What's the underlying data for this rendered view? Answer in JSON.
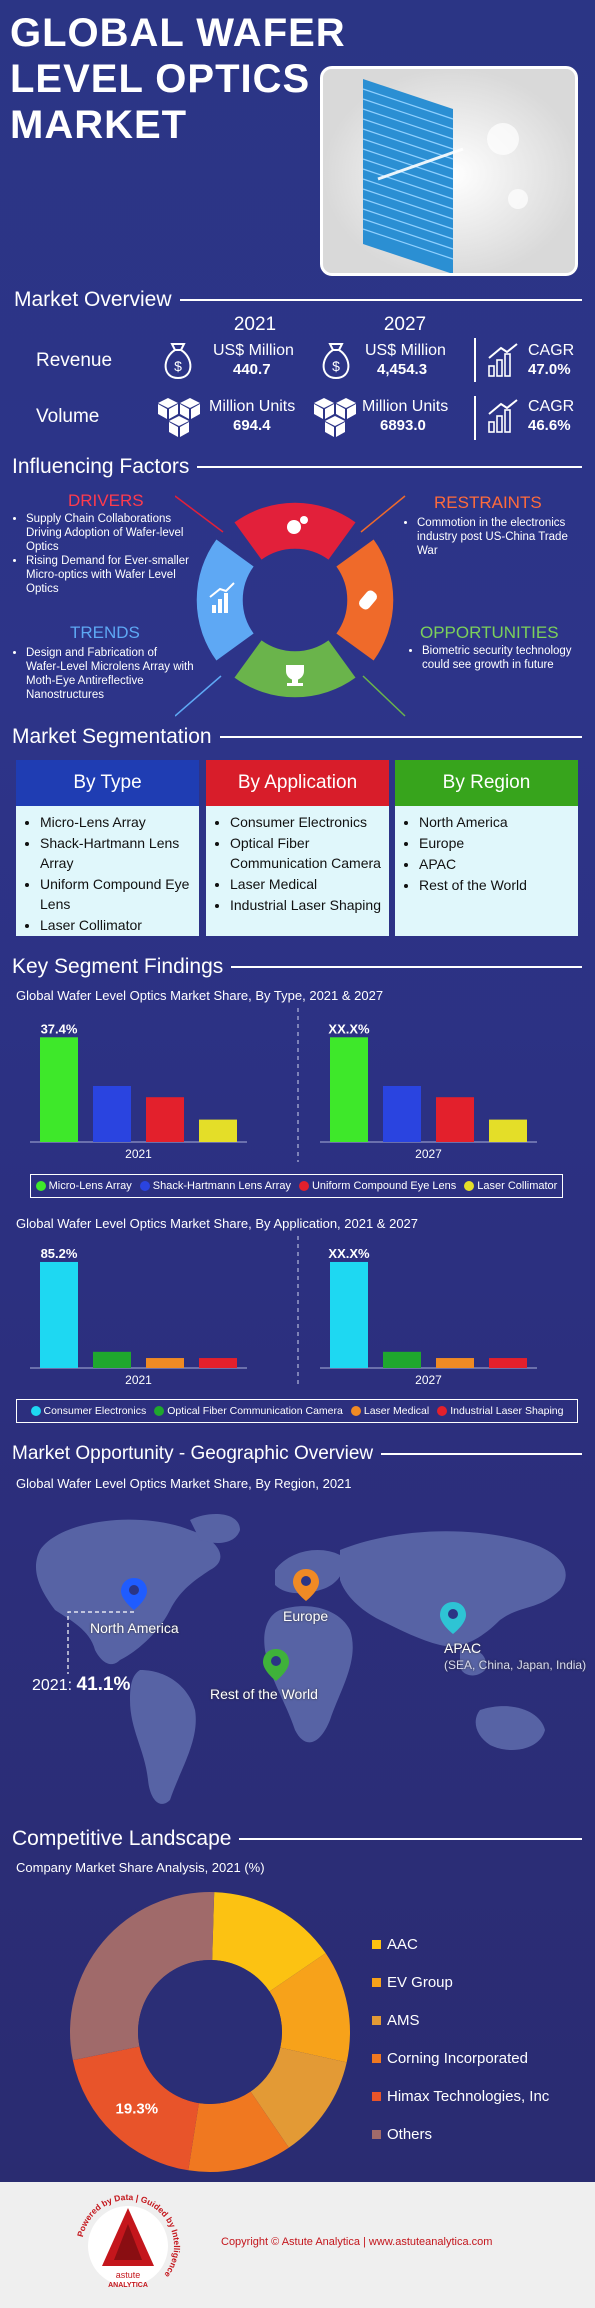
{
  "title": {
    "line1": "GLOBAL WAFER",
    "line2": "LEVEL OPTICS",
    "line3": "MARKET"
  },
  "overview": {
    "heading": "Market Overview",
    "year_a": "2021",
    "year_b": "2027",
    "revenue": {
      "label": "Revenue",
      "unit_a": "US$ Million",
      "value_a": "440.7",
      "unit_b": "US$ Million",
      "value_b": "4,454.3",
      "cagr_label": "CAGR",
      "cagr": "47.0%"
    },
    "volume": {
      "label": "Volume",
      "unit_a": "Million Units",
      "value_a": "694.4",
      "unit_b": "Million Units",
      "value_b": "6893.0",
      "cagr_label": "CAGR",
      "cagr": "46.6%"
    }
  },
  "factors": {
    "heading": "Influencing Factors",
    "drivers": {
      "title": "DRIVERS",
      "items": [
        "Supply Chain Collaborations Driving Adoption of Wafer-level Optics",
        "Rising Demand for Ever-smaller Micro-optics with Wafer Level Optics"
      ]
    },
    "restraints": {
      "title": "RESTRAINTS",
      "items": [
        "Commotion in the electronics industry post US-China Trade War"
      ]
    },
    "trends": {
      "title": "TRENDS",
      "items": [
        "Design and Fabrication of Wafer-Level Microlens Array with Moth-Eye Antireflective Nanostructures"
      ]
    },
    "opportunities": {
      "title": "OPPORTUNITIES",
      "items": [
        "Biometric security technology could see growth in future"
      ]
    }
  },
  "segmentation": {
    "heading": "Market Segmentation",
    "by_type": {
      "title": "By Type",
      "items": [
        "Micro-Lens Array",
        "Shack-Hartmann Lens Array",
        "Uniform Compound Eye Lens",
        "Laser Collimator"
      ]
    },
    "by_application": {
      "title": "By Application",
      "items": [
        "Consumer Electronics",
        "Optical Fiber Communication Camera",
        "Laser Medical",
        "Industrial Laser Shaping"
      ]
    },
    "by_region": {
      "title": "By Region",
      "items": [
        "North America",
        "Europe",
        "APAC",
        "Rest of the World"
      ]
    }
  },
  "findings": {
    "heading": "Key Segment Findings",
    "chart1_title": "Global Wafer Level Optics Market Share, By Type, 2021 & 2027",
    "chart2_title": "Global Wafer Level Optics Market Share, By Application, 2021 & 2027"
  },
  "chart_data": [
    {
      "type": "bar",
      "title": "Global Wafer Level Optics Market Share, By Type, 2021 & 2027",
      "groups": [
        "2021",
        "2027"
      ],
      "series": [
        {
          "name": "Micro-Lens Array",
          "color": "#3ee82a",
          "values": [
            37.4,
            37.4
          ]
        },
        {
          "name": "Shack-Hartmann Lens Array",
          "color": "#2a44e0",
          "values": [
            20,
            20
          ]
        },
        {
          "name": "Uniform Compound Eye Lens",
          "color": "#e3202c",
          "values": [
            16,
            16
          ]
        },
        {
          "name": "Laser Collimator",
          "color": "#e4de28",
          "values": [
            8,
            8
          ]
        }
      ],
      "data_labels": [
        "37.4%",
        "XX.X%"
      ],
      "ylim": [
        0,
        40
      ]
    },
    {
      "type": "bar",
      "title": "Global Wafer Level Optics Market Share, By Application, 2021 & 2027",
      "groups": [
        "2021",
        "2027"
      ],
      "series": [
        {
          "name": "Consumer Electronics",
          "color": "#1ed8f2",
          "values": [
            85.2,
            85.2
          ]
        },
        {
          "name": "Optical Fiber Communication Camera",
          "color": "#1fa82e",
          "values": [
            13,
            13
          ]
        },
        {
          "name": "Laser Medical",
          "color": "#f08a24",
          "values": [
            8,
            8
          ]
        },
        {
          "name": "Industrial Laser Shaping",
          "color": "#e3202c",
          "values": [
            8,
            8
          ]
        }
      ],
      "data_labels": [
        "85.2%",
        "XX.X%"
      ],
      "ylim": [
        0,
        90
      ]
    },
    {
      "type": "pie",
      "title": "Company Market Share Analysis, 2021 (%)",
      "labels": [
        "AAC",
        "EV Group",
        "AMS",
        "Corning Incorporated",
        "Himax Technologies, Inc",
        "Others"
      ],
      "values": [
        15,
        13,
        12,
        12,
        19.3,
        28.7
      ],
      "colors": [
        "#fcc212",
        "#f7a21a",
        "#e39a35",
        "#f07820",
        "#e8542a",
        "#a06a6a"
      ],
      "data_labels": [
        "19.3%"
      ]
    }
  ],
  "geo": {
    "heading": "Market Opportunity - Geographic Overview",
    "subtitle": "Global Wafer Level Optics Market Share, By Region, 2021",
    "north_america": "North America",
    "europe": "Europe",
    "apac": "APAC",
    "apac_sub": "(SEA, China, Japan, India)",
    "rest": "Rest of the World",
    "callout_year": "2021:",
    "callout_value": "41.1%"
  },
  "competitive": {
    "heading": "Competitive Landscape",
    "subtitle": "Company Market Share Analysis, 2021 (%)"
  },
  "footer": {
    "copyright": "Copyright © Astute Analytica  |  www.astuteanalytica.com",
    "logo_ring": "Powered by Data | Guided by Intelligence",
    "logo_name": "astute",
    "logo_name2": "ANALYTICA"
  }
}
